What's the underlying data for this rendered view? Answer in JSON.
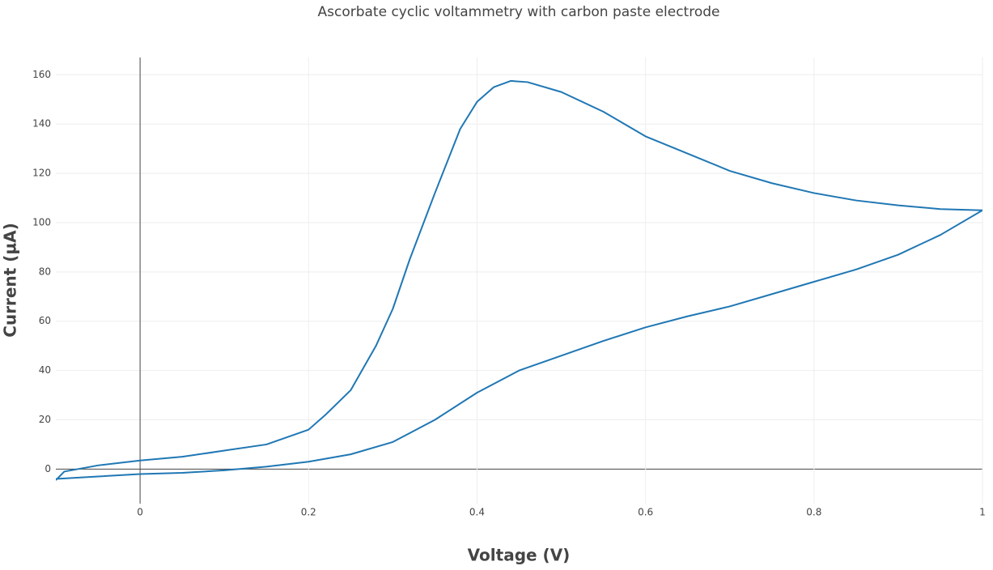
{
  "chart_data": {
    "type": "line",
    "title": "Ascorbate cyclic voltammetry with carbon paste electrode",
    "x_label": "Voltage (V)",
    "y_label": "Current (µA)",
    "x": [
      -0.1,
      -0.09,
      -0.05,
      0,
      0.05,
      0.1,
      0.15,
      0.2,
      0.22,
      0.25,
      0.28,
      0.3,
      0.32,
      0.35,
      0.38,
      0.4,
      0.42,
      0.44,
      0.46,
      0.5,
      0.55,
      0.6,
      0.65,
      0.7,
      0.75,
      0.8,
      0.85,
      0.9,
      0.95,
      1.0,
      0.95,
      0.9,
      0.85,
      0.8,
      0.75,
      0.7,
      0.65,
      0.6,
      0.55,
      0.5,
      0.45,
      0.4,
      0.35,
      0.3,
      0.25,
      0.2,
      0.15,
      0.1,
      0.05,
      0,
      -0.05,
      -0.1
    ],
    "series": [
      {
        "name": "Current",
        "color": "#1f77b4",
        "values": [
          -4.5,
          -1,
          1.5,
          3.5,
          5,
          7.5,
          10,
          16,
          22,
          32,
          50,
          65,
          85,
          112,
          138,
          149,
          155,
          157.5,
          157,
          153,
          145,
          135,
          128,
          121,
          116,
          112,
          109,
          107,
          105.5,
          105,
          95,
          87,
          81,
          76,
          71,
          66,
          62,
          57.5,
          52,
          46,
          40,
          31,
          20,
          11,
          6,
          3,
          1,
          -0.5,
          -1.5,
          -2,
          -3,
          -4
        ]
      }
    ],
    "xlim": [
      -0.1,
      1.0
    ],
    "ylim": [
      -14,
      167
    ],
    "xticks": [
      0,
      0.2,
      0.4,
      0.6,
      0.8,
      1
    ],
    "yticks": [
      0,
      20,
      40,
      60,
      80,
      100,
      120,
      140,
      160
    ],
    "grid": true
  }
}
